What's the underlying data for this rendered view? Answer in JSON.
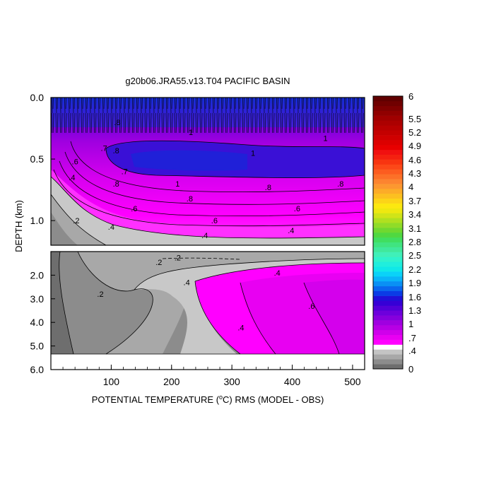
{
  "chart_data": {
    "type": "heatmap",
    "title": "g20b06.JRA55.v13.T04 PACIFIC BASIN",
    "xlabel": "POTENTIAL TEMPERATURE (°C) RMS (MODEL - OBS)",
    "xlabel_parts": {
      "prefix": "POTENTIAL TEMPERATURE (",
      "sup": "o",
      "suffix": "C) RMS (MODEL - OBS)"
    },
    "ylabel": "DEPTH (km)",
    "xlim": [
      0,
      520
    ],
    "x_ticks": [
      100,
      200,
      300,
      400,
      500
    ],
    "upper_panel": {
      "ylim": [
        0.0,
        1.2
      ],
      "y_ticks": [
        "0.0",
        "0.5",
        "1.0"
      ],
      "y_tick_values": [
        0.0,
        0.5,
        1.0
      ]
    },
    "lower_panel": {
      "ylim": [
        1.0,
        6.0
      ],
      "y_ticks": [
        "2.0",
        "3.0",
        "4.0",
        "5.0",
        "6.0"
      ],
      "y_tick_values": [
        2.0,
        3.0,
        4.0,
        5.0,
        6.0
      ]
    },
    "colorbar": {
      "labels": [
        "0",
        ".4",
        ".7",
        "1",
        "1.3",
        "1.6",
        "1.9",
        "2.2",
        "2.5",
        "2.8",
        "3.1",
        "3.4",
        "3.7",
        "4",
        "4.3",
        "4.6",
        "4.9",
        "5.2",
        "5.5",
        "6"
      ],
      "levels": [
        0,
        0.1,
        0.2,
        0.3,
        0.4,
        0.5,
        0.6,
        0.7,
        0.8,
        0.9,
        1.0,
        1.1,
        1.2,
        1.3,
        1.4,
        1.5,
        1.6,
        1.7,
        1.8,
        1.9,
        2.0,
        2.1,
        2.2,
        2.3,
        2.4,
        2.5,
        2.6,
        2.7,
        2.8,
        2.9,
        3.0,
        3.1,
        3.2,
        3.3,
        3.4,
        3.5,
        3.6,
        3.7,
        3.8,
        3.9,
        4.0,
        4.1,
        4.2,
        4.3,
        4.4,
        4.5,
        4.6,
        4.7,
        4.8,
        4.9,
        5.0,
        5.1,
        5.2,
        5.3,
        5.4,
        5.5,
        6.0
      ],
      "colors": [
        "#6e6e6e",
        "#8c8c8c",
        "#a8a8a8",
        "#c4c4c4",
        "#ffffff",
        "#ff00ff",
        "#e800f2",
        "#cf00eb",
        "#b700e4",
        "#9f00e0",
        "#8600dd",
        "#6d00dc",
        "#5200d8",
        "#3600d6",
        "#2010d8",
        "#0a3ce6",
        "#0a66ee",
        "#0a90f4",
        "#0ab4f8",
        "#0ad2f8",
        "#10e8e8",
        "#20eedd",
        "#30f2cc",
        "#40f0b8",
        "#40e89c",
        "#40e480",
        "#40de60",
        "#50d840",
        "#70d830",
        "#90dc28",
        "#b0e020",
        "#d0e418",
        "#eee810",
        "#fce810",
        "#fcd418",
        "#fcc020",
        "#fcac28",
        "#fc9830",
        "#fc8430",
        "#fc7028",
        "#fc5c20",
        "#fc4818",
        "#f83410",
        "#f42010",
        "#f01010",
        "#e80000",
        "#dc0000",
        "#d00000",
        "#c40000",
        "#b80000",
        "#ac0000",
        "#a00000",
        "#900000",
        "#800000",
        "#700000",
        "#600000"
      ]
    },
    "contour_labels": [
      {
        "text": "1",
        "x": 232,
        "y": 0.28
      },
      {
        "text": "1",
        "x": 335,
        "y": 0.45
      },
      {
        "text": "1",
        "x": 455,
        "y": 0.33
      },
      {
        "text": "1",
        "x": 210,
        "y": 0.7
      },
      {
        "text": ".8",
        "x": 110,
        "y": 0.2
      },
      {
        "text": ".8",
        "x": 108,
        "y": 0.43
      },
      {
        "text": ".8",
        "x": 108,
        "y": 0.7
      },
      {
        "text": ".8",
        "x": 230,
        "y": 0.82
      },
      {
        "text": ".8",
        "x": 360,
        "y": 0.73
      },
      {
        "text": ".8",
        "x": 480,
        "y": 0.7
      },
      {
        "text": ".7",
        "x": 122,
        "y": 0.6
      },
      {
        "text": ".7",
        "x": 88,
        "y": 0.41
      },
      {
        "text": ".6",
        "x": 40,
        "y": 0.52
      },
      {
        "text": ".6",
        "x": 138,
        "y": 0.9
      },
      {
        "text": ".6",
        "x": 271,
        "y": 1.0
      },
      {
        "text": ".6",
        "x": 408,
        "y": 0.9
      },
      {
        "text": ".4",
        "x": 35,
        "y": 0.65
      },
      {
        "text": ".4",
        "x": 100,
        "y": 1.05
      },
      {
        "text": ".4",
        "x": 255,
        "y": 1.12
      },
      {
        "text": ".4",
        "x": 398,
        "y": 1.08
      },
      {
        "text": ".2",
        "x": 42,
        "y": 1.0
      },
      {
        "text": ".2",
        "x": 179,
        "y": 1.45
      },
      {
        "text": ".2",
        "x": 210,
        "y": 1.25
      },
      {
        "text": ".2",
        "x": 82,
        "y": 2.8
      },
      {
        "text": ".4",
        "x": 225,
        "y": 2.3
      },
      {
        "text": ".4",
        "x": 375,
        "y": 1.9
      },
      {
        "text": ".6",
        "x": 432,
        "y": 3.3
      },
      {
        "text": ".4",
        "x": 315,
        "y": 4.22
      }
    ]
  }
}
